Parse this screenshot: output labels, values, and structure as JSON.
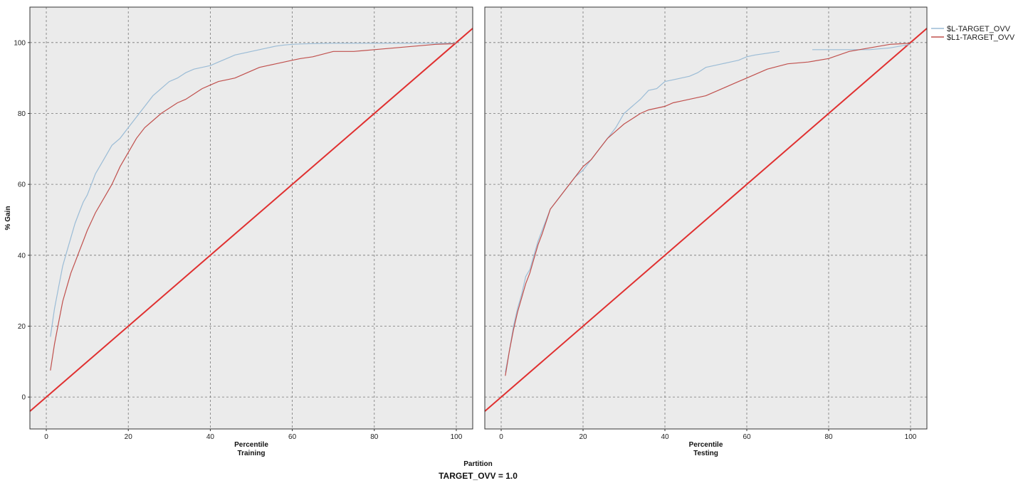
{
  "chart_data": {
    "type": "line",
    "ylabel": "% Gain",
    "partition_label": "Partition",
    "footer": "TARGET_OVV = 1.0",
    "xlim": [
      -4,
      104
    ],
    "ylim": [
      -9,
      110
    ],
    "xticks": [
      0,
      20,
      40,
      60,
      80,
      100
    ],
    "yticks": [
      0,
      20,
      40,
      60,
      80,
      100
    ],
    "grid": true,
    "legend_position": "top-right",
    "legend": [
      {
        "name": "$L-TARGET_OVV",
        "color": "#9bbcd6"
      },
      {
        "name": "$L1-TARGET_OVV",
        "color": "#c0504d"
      }
    ],
    "baseline": {
      "x": [
        -4,
        104
      ],
      "y": [
        -4,
        104
      ],
      "color": "#e03030"
    },
    "panels": [
      {
        "xlabel": "Percentile",
        "partition": "Training",
        "series": [
          {
            "name": "$L-TARGET_OVV",
            "color": "#9bbcd6",
            "x": [
              1,
              2,
              3,
              4,
              5,
              6,
              7,
              8,
              9,
              10,
              12,
              14,
              16,
              18,
              20,
              22,
              24,
              26,
              28,
              30,
              32,
              34,
              36,
              38,
              40,
              42,
              44,
              46,
              48,
              50,
              52,
              54,
              56,
              58,
              60,
              62,
              65,
              70,
              75,
              80,
              85,
              90,
              95,
              100
            ],
            "y": [
              17,
              25,
              31,
              37,
              41,
              45,
              49,
              52,
              55,
              57,
              63,
              67,
              71,
              73,
              76,
              79,
              82,
              85,
              87,
              89,
              90,
              91.5,
              92.5,
              93,
              93.5,
              94.5,
              95.5,
              96.5,
              97,
              97.5,
              98,
              98.5,
              99,
              99.3,
              99.5,
              99.6,
              99.7,
              99.8,
              99.8,
              99.8,
              99.8,
              99.8,
              99.8,
              99.8
            ]
          },
          {
            "name": "$L1-TARGET_OVV",
            "color": "#c0504d",
            "x": [
              1,
              2,
              3,
              4,
              5,
              6,
              7,
              8,
              9,
              10,
              12,
              14,
              16,
              18,
              20,
              22,
              24,
              26,
              28,
              30,
              32,
              34,
              36,
              38,
              40,
              42,
              44,
              46,
              48,
              50,
              52,
              54,
              56,
              58,
              60,
              62,
              65,
              70,
              75,
              80,
              85,
              90,
              95,
              100
            ],
            "y": [
              7.5,
              15,
              21,
              27,
              31,
              35,
              38,
              41,
              44,
              47,
              52,
              56,
              60,
              65,
              69,
              73,
              76,
              78,
              80,
              81.5,
              83,
              84,
              85.5,
              87,
              88,
              89,
              89.5,
              90,
              91,
              92,
              93,
              93.5,
              94,
              94.5,
              95,
              95.5,
              96,
              97.5,
              97.5,
              98,
              98.5,
              99,
              99.5,
              99.7
            ]
          }
        ]
      },
      {
        "xlabel": "Percentile",
        "partition": "Testing",
        "series": [
          {
            "name": "$L-TARGET_OVV",
            "color": "#9bbcd6",
            "x": [
              1,
              2,
              3,
              4,
              5,
              6,
              7,
              8,
              9,
              10,
              12,
              14,
              16,
              18,
              20,
              22,
              24,
              26,
              28,
              30,
              32,
              34,
              36,
              38,
              40,
              42,
              44,
              46,
              48,
              50,
              52,
              54,
              56,
              58,
              60,
              62,
              65,
              68,
              null,
              76,
              80,
              85,
              90,
              95,
              100
            ],
            "y": [
              7,
              13,
              20,
              25,
              29,
              34,
              36,
              40,
              44,
              47,
              53,
              56,
              59,
              62,
              64,
              67,
              70,
              73,
              76,
              80,
              82,
              84,
              86.5,
              87,
              89,
              89.5,
              90,
              90.5,
              91.5,
              93,
              93.5,
              94,
              94.5,
              95,
              96,
              96.5,
              97,
              97.5,
              null,
              98,
              98,
              98,
              98,
              98.5,
              99.5
            ]
          },
          {
            "name": "$L1-TARGET_OVV",
            "color": "#c0504d",
            "x": [
              1,
              2,
              3,
              4,
              5,
              6,
              7,
              8,
              9,
              10,
              12,
              14,
              16,
              18,
              20,
              22,
              24,
              26,
              28,
              30,
              32,
              34,
              36,
              38,
              40,
              42,
              44,
              46,
              48,
              50,
              52,
              54,
              56,
              58,
              60,
              62,
              65,
              70,
              75,
              80,
              85,
              90,
              95,
              100
            ],
            "y": [
              6,
              13,
              19,
              24,
              28,
              32,
              35,
              39,
              43,
              46,
              53,
              56,
              59,
              62,
              65,
              67,
              70,
              73,
              75,
              77,
              78.5,
              80,
              81,
              81.5,
              82,
              83,
              83.5,
              84,
              84.5,
              85,
              86,
              87,
              88,
              89,
              90,
              91,
              92.5,
              94,
              94.5,
              95.5,
              97.5,
              98.5,
              99.5,
              99.8
            ]
          }
        ]
      }
    ]
  }
}
